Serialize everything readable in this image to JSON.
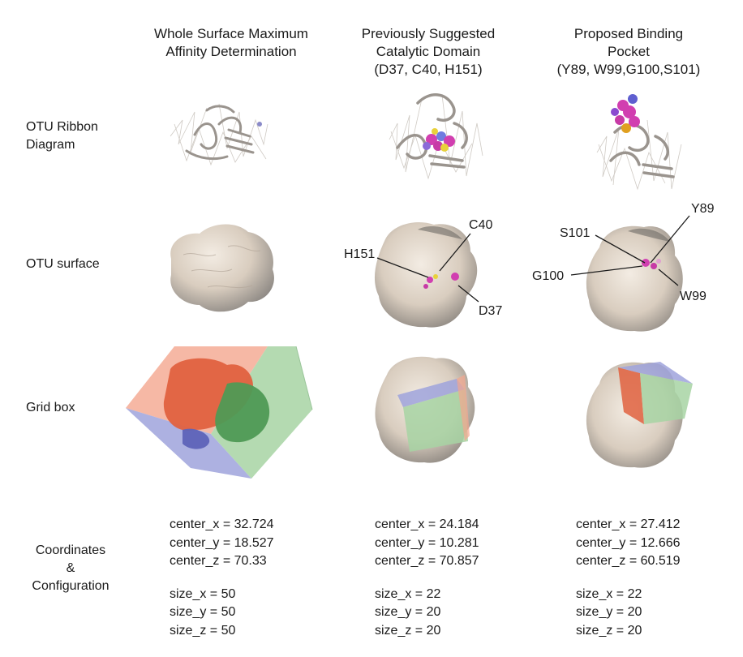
{
  "columns": [
    {
      "heading_lines": [
        "Whole Surface Maximum",
        "Affinity Determination"
      ]
    },
    {
      "heading_lines": [
        "Previously Suggested",
        "Catalytic Domain",
        "(D37, C40, H151)"
      ]
    },
    {
      "heading_lines": [
        "Proposed Binding",
        "Pocket",
        "(Y89, W99,G100,S101)"
      ]
    }
  ],
  "rows": [
    {
      "label_lines": [
        "OTU Ribbon",
        "Diagram"
      ]
    },
    {
      "label_lines": [
        "OTU surface"
      ]
    },
    {
      "label_lines": [
        "Grid box"
      ]
    },
    {
      "label_lines": [
        "Coordinates",
        "&",
        "Configuration"
      ]
    }
  ],
  "residue_labels": {
    "catalytic": [
      "C40",
      "H151",
      "D37"
    ],
    "pocket": [
      "Y89",
      "S101",
      "G100",
      "W99"
    ]
  },
  "configurations": [
    {
      "center": [
        "center_x = 32.724",
        "center_y = 18.527",
        "center_z = 70.33"
      ],
      "size": [
        "size_x = 50",
        "size_y = 50",
        "size_z = 50"
      ]
    },
    {
      "center": [
        "center_x = 24.184",
        "center_y = 10.281",
        "center_z = 70.857"
      ],
      "size": [
        "size_x = 22",
        "size_y = 20",
        "size_z = 20"
      ]
    },
    {
      "center": [
        "center_x = 27.412",
        "center_y = 12.666",
        "center_z = 60.519"
      ],
      "size": [
        "size_x = 22",
        "size_y = 20",
        "size_z = 20"
      ]
    }
  ],
  "colors": {
    "surface": "#d9cdbf",
    "surface_shadow": "#8f8a85",
    "ribbon": "#b9b4ae",
    "ligand": "#d13fb0",
    "box_red": "#f4a68e",
    "box_blue": "#9fa3dc",
    "box_green": "#a7d3a3",
    "protein_red": "#e0613f",
    "protein_green": "#4f9a55",
    "protein_blue": "#5e63b8"
  }
}
